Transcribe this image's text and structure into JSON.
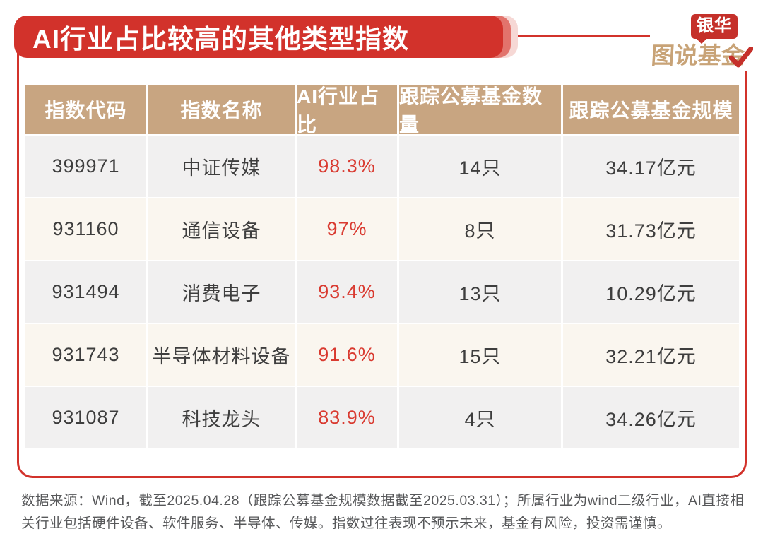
{
  "title": "AI行业占比较高的其他类型指数",
  "logo": {
    "badge": "银华",
    "name": "图说基金",
    "checkmark_icon": "red-check"
  },
  "table": {
    "headers": [
      "指数代码",
      "指数名称",
      "AI行业占比",
      "跟踪公募基金数量",
      "跟踪公募基金规模"
    ],
    "rows": [
      [
        "399971",
        "中证传媒",
        "98.3%",
        "14只",
        "34.17亿元"
      ],
      [
        "931160",
        "通信设备",
        "97%",
        "8只",
        "31.73亿元"
      ],
      [
        "931494",
        "消费电子",
        "93.4%",
        "13只",
        "10.29亿元"
      ],
      [
        "931743",
        "半导体材料设备",
        "91.6%",
        "15只",
        "32.21亿元"
      ],
      [
        "931087",
        "科技龙头",
        "83.9%",
        "4只",
        "34.26亿元"
      ]
    ]
  },
  "footer": {
    "note": "数据来源：Wind，截至2025.04.28（跟踪公募基金规模数据截至2025.03.31）；所属行业为wind二级行业，AI直接相关行业包括硬件设备、软件服务、半导体、传媒。指数过往表现不预示未来，基金有风险，投资需谨慎。"
  },
  "colors": {
    "accent_red": "#d2322b",
    "shadow_red_mid": "#e2736c",
    "shadow_red_pale": "#f6d8d5",
    "header_tan": "#c8a581",
    "row_gray": "#f1f0f0",
    "row_cream": "#faf6ef",
    "percent_red": "#d93a30",
    "logo_gold": "#c8a377",
    "body_text": "#3e3e3e",
    "footer_text": "#57585a"
  },
  "chart_data": {
    "type": "table",
    "title": "AI行业占比较高的其他类型指数",
    "columns": [
      "指数代码",
      "指数名称",
      "AI行业占比",
      "跟踪公募基金数量",
      "跟踪公募基金规模"
    ],
    "rows": [
      {
        "指数代码": "399971",
        "指数名称": "中证传媒",
        "AI行业占比": "98.3%",
        "跟踪公募基金数量": "14只",
        "跟踪公募基金规模": "34.17亿元"
      },
      {
        "指数代码": "931160",
        "指数名称": "通信设备",
        "AI行业占比": "97%",
        "跟踪公募基金数量": "8只",
        "跟踪公募基金规模": "31.73亿元"
      },
      {
        "指数代码": "931494",
        "指数名称": "消费电子",
        "AI行业占比": "93.4%",
        "跟踪公募基金数量": "13只",
        "跟踪公募基金规模": "10.29亿元"
      },
      {
        "指数代码": "931743",
        "指数名称": "半导体材料设备",
        "AI行业占比": "91.6%",
        "跟踪公募基金数量": "15只",
        "跟踪公募基金规模": "32.21亿元"
      },
      {
        "指数代码": "931087",
        "指数名称": "科技龙头",
        "AI行业占比": "83.9%",
        "跟踪公募基金数量": "4只",
        "跟踪公募基金规模": "34.26亿元"
      }
    ],
    "notes": "数据来源：Wind，截至2025.04.28（跟踪公募基金规模数据截至2025.03.31）；所属行业为wind二级行业，AI直接相关行业包括硬件设备、软件服务、半导体、传媒。指数过往表现不预示未来，基金有风险，投资需谨慎。"
  }
}
